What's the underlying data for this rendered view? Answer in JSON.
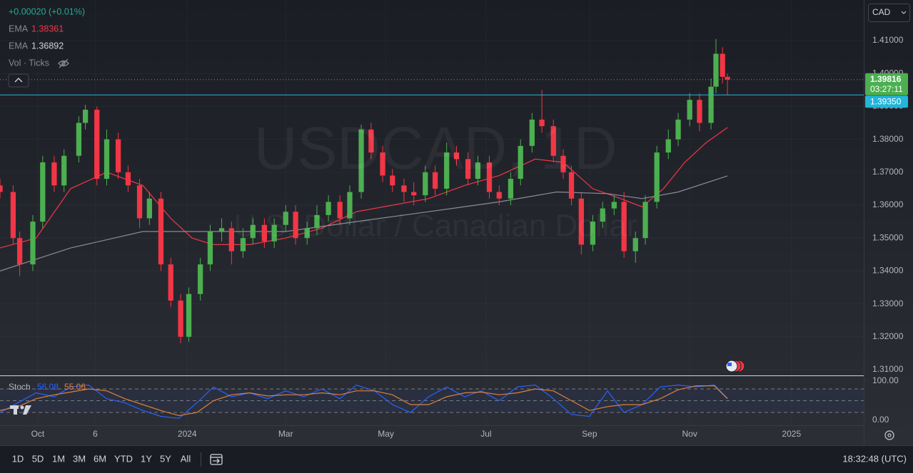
{
  "header": {
    "change": "+0.00020 (+0.01%)",
    "indicators": [
      {
        "name": "EMA",
        "value": 1.38361,
        "color": "#f23645"
      },
      {
        "name": "EMA",
        "value": 1.36892,
        "color": "#d1d4dc"
      }
    ],
    "volume": "Vol · Ticks"
  },
  "currency": "CAD",
  "watermark": {
    "symbol": "USDCAD, 1D",
    "description": "U.S. Dollar / Canadian Dollar"
  },
  "chart_data": [
    {
      "type": "candlestick",
      "up_color": "#4caf50",
      "down_color": "#f23645",
      "x": [
        0,
        8,
        12,
        20,
        26,
        33,
        39,
        48,
        52,
        59,
        65,
        72,
        78,
        85,
        91,
        98,
        104,
        110,
        115,
        122,
        128,
        135,
        141,
        148,
        154,
        161,
        167,
        174,
        180,
        187,
        193,
        200,
        207,
        213,
        220,
        226,
        233,
        239,
        246,
        252,
        259,
        265,
        272,
        278,
        285,
        291,
        298,
        304,
        311,
        317,
        324,
        330,
        337,
        343,
        348,
        354,
        361,
        367,
        374,
        380,
        387,
        393,
        400,
        407,
        413,
        420,
        426,
        433,
        436,
        440,
        443
      ],
      "open": [
        1.366,
        1.364,
        1.35,
        1.342,
        1.355,
        1.373,
        1.366,
        1.375,
        1.385,
        1.389,
        1.368,
        1.38,
        1.37,
        1.366,
        1.356,
        1.362,
        1.342,
        1.331,
        1.32,
        1.333,
        1.342,
        1.352,
        1.353,
        1.346,
        1.35,
        1.354,
        1.349,
        1.354,
        1.358,
        1.35,
        1.353,
        1.357,
        1.361,
        1.356,
        1.364,
        1.383,
        1.376,
        1.369,
        1.366,
        1.364,
        1.363,
        1.37,
        1.365,
        1.376,
        1.374,
        1.368,
        1.373,
        1.364,
        1.362,
        1.368,
        1.378,
        1.386,
        1.384,
        1.375,
        1.37,
        1.362,
        1.348,
        1.355,
        1.359,
        1.361,
        1.346,
        1.35,
        1.361,
        1.376,
        1.38,
        1.386,
        1.392,
        1.385,
        1.396,
        1.406,
        1.399
      ],
      "high": [
        1.368,
        1.366,
        1.352,
        1.357,
        1.375,
        1.375,
        1.377,
        1.387,
        1.3905,
        1.39,
        1.383,
        1.382,
        1.372,
        1.368,
        1.364,
        1.364,
        1.344,
        1.333,
        1.335,
        1.344,
        1.354,
        1.356,
        1.355,
        1.353,
        1.356,
        1.356,
        1.356,
        1.36,
        1.36,
        1.355,
        1.36,
        1.363,
        1.363,
        1.366,
        1.3845,
        1.385,
        1.378,
        1.371,
        1.368,
        1.367,
        1.372,
        1.372,
        1.379,
        1.378,
        1.376,
        1.375,
        1.375,
        1.366,
        1.37,
        1.38,
        1.388,
        1.395,
        1.386,
        1.377,
        1.372,
        1.364,
        1.357,
        1.361,
        1.363,
        1.364,
        1.352,
        1.363,
        1.378,
        1.383,
        1.388,
        1.394,
        1.394,
        1.3985,
        1.4105,
        1.408,
        1.4
      ],
      "low": [
        1.362,
        1.348,
        1.3385,
        1.34,
        1.353,
        1.364,
        1.364,
        1.373,
        1.383,
        1.366,
        1.366,
        1.368,
        1.364,
        1.353,
        1.354,
        1.34,
        1.329,
        1.318,
        1.3185,
        1.331,
        1.34,
        1.349,
        1.342,
        1.344,
        1.348,
        1.347,
        1.347,
        1.352,
        1.348,
        1.348,
        1.351,
        1.355,
        1.354,
        1.354,
        1.362,
        1.374,
        1.367,
        1.364,
        1.361,
        1.36,
        1.361,
        1.363,
        1.363,
        1.372,
        1.366,
        1.366,
        1.362,
        1.36,
        1.36,
        1.366,
        1.376,
        1.382,
        1.373,
        1.368,
        1.36,
        1.345,
        1.346,
        1.353,
        1.357,
        1.344,
        1.3425,
        1.348,
        1.359,
        1.374,
        1.378,
        1.384,
        1.3825,
        1.383,
        1.394,
        1.397,
        1.3935
      ],
      "close": [
        1.364,
        1.35,
        1.342,
        1.355,
        1.373,
        1.366,
        1.375,
        1.385,
        1.389,
        1.368,
        1.38,
        1.37,
        1.366,
        1.356,
        1.362,
        1.342,
        1.331,
        1.32,
        1.333,
        1.342,
        1.352,
        1.353,
        1.346,
        1.35,
        1.354,
        1.349,
        1.354,
        1.358,
        1.35,
        1.353,
        1.357,
        1.361,
        1.356,
        1.364,
        1.383,
        1.376,
        1.369,
        1.366,
        1.364,
        1.363,
        1.37,
        1.365,
        1.376,
        1.374,
        1.368,
        1.373,
        1.364,
        1.362,
        1.368,
        1.378,
        1.386,
        1.384,
        1.375,
        1.37,
        1.362,
        1.348,
        1.355,
        1.359,
        1.361,
        1.346,
        1.35,
        1.361,
        1.376,
        1.38,
        1.386,
        1.392,
        1.385,
        1.396,
        1.406,
        1.399,
        1.39816
      ],
      "overlays": [
        {
          "color": "#f23645",
          "x": [
            0,
            22,
            43,
            65,
            87,
            104,
            117,
            130,
            152,
            174,
            196,
            217,
            239,
            261,
            283,
            304,
            326,
            343,
            361,
            378,
            391,
            404,
            417,
            430,
            443
          ],
          "values": [
            1.347,
            1.35,
            1.365,
            1.37,
            1.366,
            1.356,
            1.35,
            1.348,
            1.348,
            1.35,
            1.353,
            1.358,
            1.36,
            1.362,
            1.366,
            1.369,
            1.374,
            1.373,
            1.365,
            1.362,
            1.3595,
            1.365,
            1.373,
            1.379,
            1.3836
          ]
        },
        {
          "color": "#8a8d96",
          "x": [
            0,
            43,
            87,
            130,
            174,
            217,
            261,
            304,
            339,
            370,
            391,
            413,
            443
          ],
          "values": [
            1.34,
            1.347,
            1.352,
            1.352,
            1.352,
            1.355,
            1.358,
            1.361,
            1.364,
            1.3635,
            1.362,
            1.364,
            1.3689
          ]
        }
      ],
      "last_price": 1.39816,
      "countdown": "03:27:11",
      "level": {
        "value": 1.3935,
        "label": "1.39350"
      },
      "xlim": [
        0,
        526
      ],
      "xticks": [
        {
          "value": 23,
          "label": "Oct"
        },
        {
          "value": 58,
          "label": "6"
        },
        {
          "value": 114,
          "label": "2024"
        },
        {
          "value": 174,
          "label": "Mar"
        },
        {
          "value": 235,
          "label": "May"
        },
        {
          "value": 296,
          "label": "Jul"
        },
        {
          "value": 359,
          "label": "Sep"
        },
        {
          "value": 420,
          "label": "Nov"
        },
        {
          "value": 482,
          "label": "2025"
        }
      ],
      "ylim": [
        1.30827,
        1.42234
      ],
      "yticks": [
        {
          "value": 1.41,
          "label": "1.41000"
        },
        {
          "value": 1.4,
          "label": "1.40000"
        },
        {
          "value": 1.39,
          "label": "1.39000"
        },
        {
          "value": 1.38,
          "label": "1.38000"
        },
        {
          "value": 1.37,
          "label": "1.37000"
        },
        {
          "value": 1.36,
          "label": "1.36000"
        },
        {
          "value": 1.35,
          "label": "1.35000"
        },
        {
          "value": 1.34,
          "label": "1.34000"
        },
        {
          "value": 1.33,
          "label": "1.33000"
        },
        {
          "value": 1.32,
          "label": "1.32000"
        },
        {
          "value": 1.31,
          "label": "1.31000"
        }
      ]
    },
    {
      "type": "line",
      "title": "Stoch",
      "x": [
        0,
        11,
        22,
        33,
        43,
        54,
        65,
        76,
        87,
        98,
        109,
        120,
        130,
        141,
        152,
        163,
        174,
        185,
        196,
        207,
        217,
        228,
        239,
        250,
        261,
        272,
        283,
        293,
        304,
        315,
        326,
        337,
        348,
        359,
        370,
        380,
        391,
        402,
        413,
        424,
        435,
        443
      ],
      "series": [
        {
          "color": "#2962ff",
          "values": [
            20,
            45,
            70,
            60,
            85,
            90,
            55,
            45,
            25,
            10,
            5,
            45,
            85,
            60,
            70,
            55,
            75,
            60,
            80,
            55,
            90,
            75,
            40,
            20,
            60,
            85,
            60,
            75,
            50,
            85,
            90,
            55,
            15,
            10,
            75,
            20,
            40,
            85,
            90,
            85,
            90,
            56.08
          ]
        },
        {
          "color": "#e0803a",
          "values": [
            25,
            35,
            55,
            65,
            72,
            80,
            75,
            55,
            40,
            25,
            12,
            20,
            50,
            65,
            70,
            62,
            65,
            65,
            70,
            65,
            75,
            75,
            65,
            40,
            40,
            60,
            70,
            72,
            65,
            70,
            80,
            75,
            50,
            25,
            35,
            40,
            40,
            55,
            78,
            88,
            88,
            55.06
          ]
        }
      ],
      "bands": [
        80,
        50,
        20
      ],
      "xlim": [
        0,
        526
      ],
      "ylim": [
        -12.7,
        112.7
      ],
      "yticks": [
        {
          "value": 100,
          "label": "100.00"
        },
        {
          "value": 0,
          "label": "0.00"
        }
      ]
    }
  ],
  "ranges": [
    "1D",
    "5D",
    "1M",
    "3M",
    "6M",
    "YTD",
    "1Y",
    "5Y",
    "All"
  ],
  "clock": "18:32:48 (UTC)"
}
